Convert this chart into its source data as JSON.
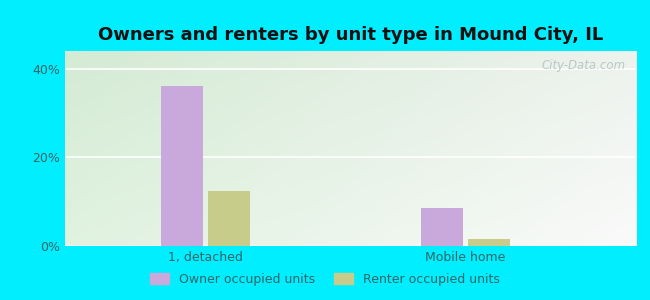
{
  "title": "Owners and renters by unit type in Mound City, IL",
  "categories": [
    "1, detached",
    "Mobile home"
  ],
  "owner_values": [
    36.0,
    8.5
  ],
  "renter_values": [
    12.5,
    1.5
  ],
  "owner_color": "#c9a8dc",
  "renter_color": "#c8cc8a",
  "yticks": [
    0,
    20,
    40
  ],
  "ylim": [
    0,
    44
  ],
  "bar_width": 0.08,
  "group_positions": [
    0.22,
    0.72
  ],
  "figure_bg": "#00eeff",
  "legend_owner_label": "Owner occupied units",
  "legend_renter_label": "Renter occupied units",
  "watermark": "City-Data.com",
  "title_fontsize": 13,
  "tick_label_color": "#336666"
}
